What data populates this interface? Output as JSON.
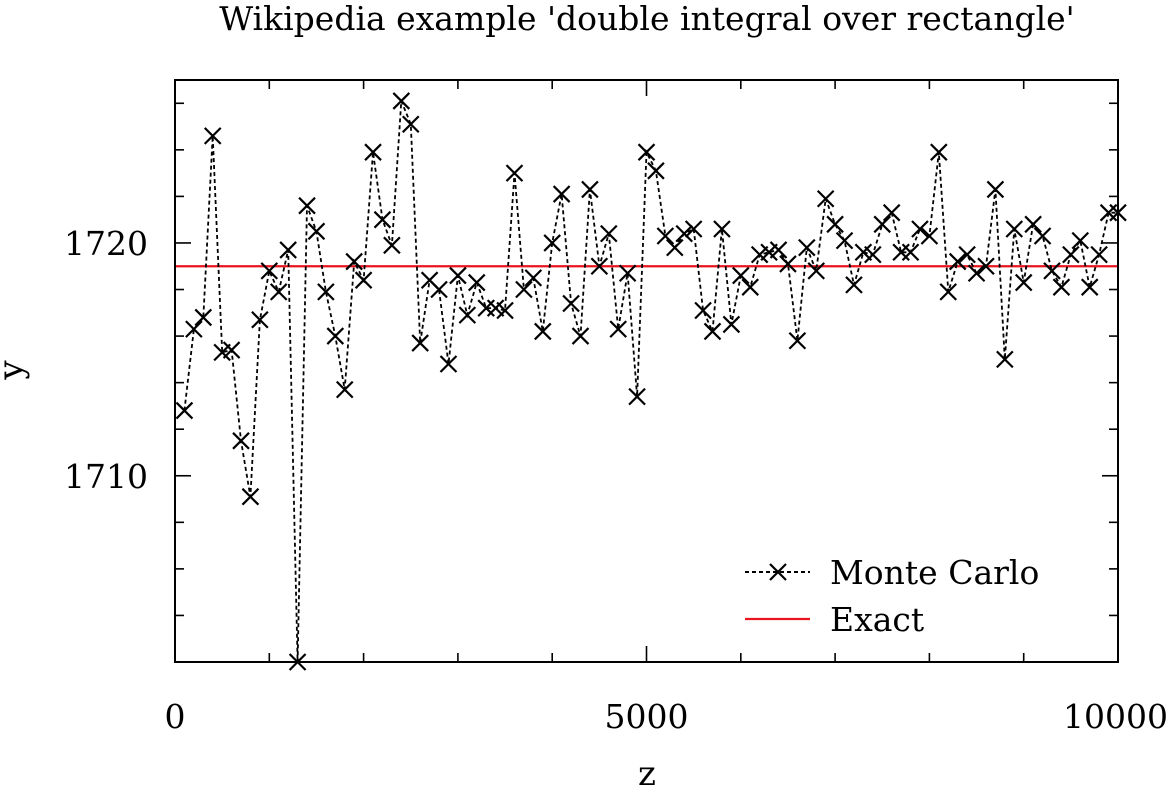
{
  "chart_data": {
    "type": "line",
    "title": "Wikipedia example 'double integral over rectangle'",
    "xlabel": "z",
    "ylabel": "y",
    "xlim": [
      0,
      10000
    ],
    "ylim": [
      1702,
      1727
    ],
    "x_ticks": [
      0,
      5000,
      10000
    ],
    "x_tick_labels": [
      "0",
      "5000",
      "10000"
    ],
    "y_ticks": [
      1710,
      1720
    ],
    "y_tick_labels": [
      "1710",
      "1720"
    ],
    "legend_position": "bottom-right",
    "series": [
      {
        "name": "Monte Carlo",
        "style": "dotted-with-x-markers",
        "color": "#000000",
        "x": [
          100,
          200,
          300,
          400,
          500,
          600,
          700,
          800,
          900,
          1000,
          1100,
          1200,
          1300,
          1400,
          1500,
          1600,
          1700,
          1800,
          1900,
          2000,
          2100,
          2200,
          2300,
          2400,
          2500,
          2600,
          2700,
          2800,
          2900,
          3000,
          3100,
          3200,
          3300,
          3400,
          3500,
          3600,
          3700,
          3800,
          3900,
          4000,
          4100,
          4200,
          4300,
          4400,
          4500,
          4600,
          4700,
          4800,
          4900,
          5000,
          5100,
          5200,
          5300,
          5400,
          5500,
          5600,
          5700,
          5800,
          5900,
          6000,
          6100,
          6200,
          6300,
          6400,
          6500,
          6600,
          6700,
          6800,
          6900,
          7000,
          7100,
          7200,
          7300,
          7400,
          7500,
          7600,
          7700,
          7800,
          7900,
          8000,
          8100,
          8200,
          8300,
          8400,
          8500,
          8600,
          8700,
          8800,
          8900,
          9000,
          9100,
          9200,
          9300,
          9400,
          9500,
          9600,
          9700,
          9800,
          9900,
          10000
        ],
        "values": [
          1712.8,
          1716.3,
          1716.8,
          1724.6,
          1715.3,
          1715.4,
          1711.5,
          1709.1,
          1716.7,
          1718.8,
          1717.9,
          1719.7,
          1702.0,
          1721.6,
          1720.5,
          1717.9,
          1716.0,
          1713.7,
          1719.2,
          1718.4,
          1723.9,
          1721.0,
          1719.9,
          1726.1,
          1725.1,
          1715.7,
          1718.4,
          1718.0,
          1714.8,
          1718.6,
          1716.9,
          1718.3,
          1717.2,
          1717.2,
          1717.1,
          1723.0,
          1718.0,
          1718.5,
          1716.2,
          1720.0,
          1722.1,
          1717.4,
          1716.0,
          1722.3,
          1719.0,
          1720.4,
          1716.3,
          1718.7,
          1713.4,
          1723.9,
          1723.1,
          1720.3,
          1719.8,
          1720.4,
          1720.6,
          1717.1,
          1716.2,
          1720.6,
          1716.5,
          1718.6,
          1718.1,
          1719.5,
          1719.6,
          1719.7,
          1719.1,
          1715.8,
          1719.8,
          1718.8,
          1721.9,
          1720.8,
          1720.1,
          1718.2,
          1719.6,
          1719.5,
          1720.8,
          1721.3,
          1719.6,
          1719.6,
          1720.6,
          1720.3,
          1723.9,
          1717.9,
          1719.2,
          1719.5,
          1718.7,
          1719.0,
          1722.3,
          1715.0,
          1720.6,
          1718.3,
          1720.8,
          1720.3,
          1718.8,
          1718.1,
          1719.5,
          1720.1,
          1718.1,
          1719.5,
          1721.3,
          1721.3
        ]
      },
      {
        "name": "Exact",
        "style": "solid",
        "color": "#e8141e",
        "x": [
          0,
          10000
        ],
        "values": [
          1719.0,
          1719.0
        ]
      }
    ]
  }
}
